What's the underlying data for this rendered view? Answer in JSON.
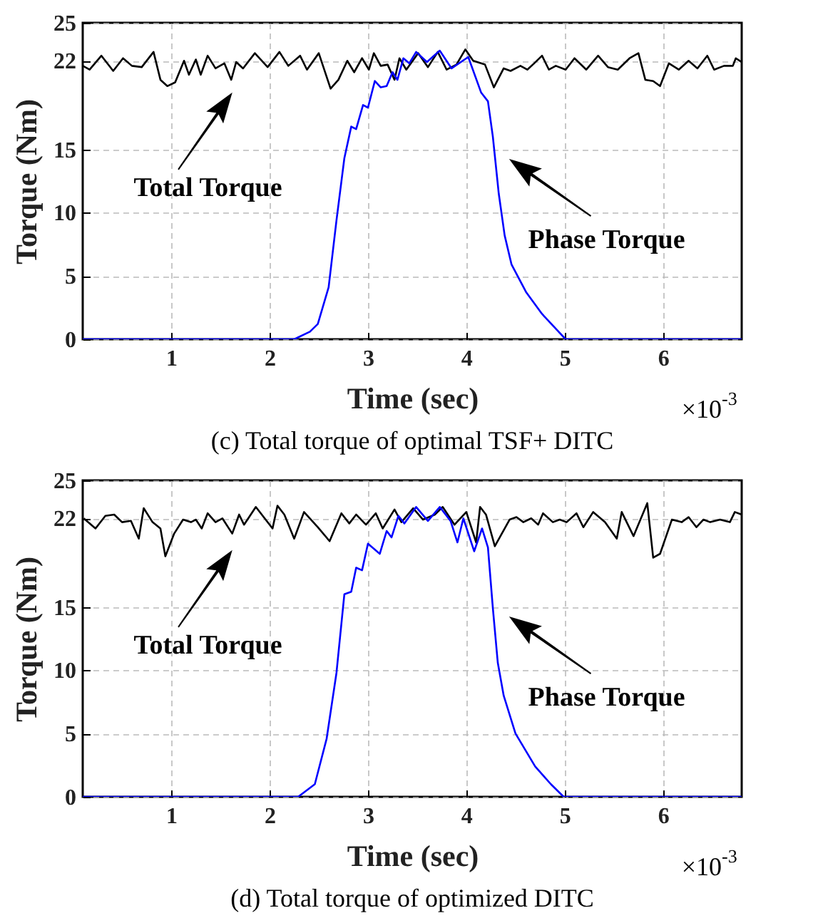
{
  "chart_data": [
    {
      "type": "line",
      "xlabel": "Time (sec)",
      "ylabel": "Torque (Nm)",
      "xlim": [
        0.1,
        6.8
      ],
      "xticks": [
        1,
        2,
        3,
        4,
        5,
        6
      ],
      "ylim": [
        0,
        25
      ],
      "yticks": [
        0,
        5,
        10,
        15,
        22,
        25
      ],
      "grid": true,
      "annotations": [
        "Total Torque",
        "Phase Torque",
        "×10$^{-3}$",
        "(c) Total torque of optimal TSF+ DITC"
      ],
      "series": [
        {
          "color": "#000000",
          "x": [
            0.1,
            0.17,
            0.29,
            0.41,
            0.51,
            0.6,
            0.7,
            0.82,
            0.89,
            0.96,
            1.04,
            1.13,
            1.18,
            1.25,
            1.3,
            1.37,
            1.45,
            1.54,
            1.61,
            1.66,
            1.73,
            1.85,
            1.98,
            2.1,
            2.19,
            2.31,
            2.38,
            2.5,
            2.62,
            2.7,
            2.79,
            2.86,
            2.94,
            3.01,
            3.06,
            3.13,
            3.2,
            3.27,
            3.32,
            3.39,
            3.51,
            3.61,
            3.71,
            3.8,
            3.9,
            3.99,
            4.07,
            4.19,
            4.28,
            4.38,
            4.45,
            4.55,
            4.62,
            4.69,
            4.77,
            4.84,
            4.91,
            5.01,
            5.1,
            5.22,
            5.34,
            5.44,
            5.54,
            5.66,
            5.75,
            5.82,
            5.9,
            5.97,
            6.06,
            6.16,
            6.26,
            6.35,
            6.45,
            6.52,
            6.62,
            6.71,
            6.74,
            6.8
          ],
          "values": [
            21.6,
            21.3,
            22.4,
            21.2,
            22.2,
            21.6,
            21.5,
            22.7,
            20.5,
            20,
            20.3,
            22,
            20.9,
            22.1,
            20.9,
            22.4,
            21.4,
            21.8,
            20.5,
            21.9,
            21.4,
            22.6,
            21.5,
            22.7,
            21.6,
            22.4,
            21.3,
            22.6,
            19.8,
            20.5,
            22,
            21.1,
            22.2,
            21.3,
            22.6,
            21.6,
            21.7,
            20.5,
            22.2,
            21.3,
            22.6,
            21.5,
            22.7,
            21.3,
            21.7,
            22.9,
            22,
            21.7,
            19.9,
            21.4,
            21.2,
            21.6,
            21.3,
            21.8,
            22.4,
            21.3,
            21.6,
            21.3,
            22.2,
            21.3,
            22.4,
            21.5,
            21.3,
            22.2,
            22.6,
            20.5,
            20.4,
            20,
            21.8,
            21.3,
            22,
            21.4,
            22.4,
            21.3,
            21.6,
            21.6,
            22.2,
            21.9
          ]
        },
        {
          "color": "#0000ff",
          "x": [
            0.1,
            2.25,
            2.41,
            2.49,
            2.6,
            2.68,
            2.76,
            2.83,
            2.88,
            2.95,
            3,
            3.07,
            3.13,
            3.19,
            3.25,
            3.3,
            3.36,
            3.42,
            3.49,
            3.6,
            3.73,
            3.85,
            4.02,
            4.15,
            4.22,
            4.27,
            4.33,
            4.39,
            4.46,
            4.61,
            4.77,
            5.01,
            6.8
          ],
          "values": [
            0,
            0,
            0.6,
            1.2,
            4.1,
            9.4,
            14.3,
            16.8,
            16.6,
            18.5,
            18.3,
            20.4,
            19.9,
            20,
            21.1,
            20.5,
            22.2,
            21.8,
            22.7,
            21.9,
            22.8,
            21.4,
            22.3,
            19.5,
            18.8,
            16,
            11.5,
            8.2,
            5.9,
            3.7,
            2,
            0,
            0
          ]
        }
      ]
    },
    {
      "type": "line",
      "xlabel": "Time (sec)",
      "ylabel": "Torque (Nm)",
      "xlim": [
        0.1,
        6.8
      ],
      "xticks": [
        1,
        2,
        3,
        4,
        5,
        6
      ],
      "ylim": [
        0,
        25
      ],
      "yticks": [
        0,
        5,
        10,
        15,
        22,
        25
      ],
      "grid": true,
      "annotations": [
        "Total Torque",
        "Phase Torque",
        "×10$^{-3}$",
        "(d) Total torque of optimized DITC"
      ],
      "series": [
        {
          "color": "#000000",
          "x": [
            0.11,
            0.23,
            0.33,
            0.42,
            0.5,
            0.59,
            0.67,
            0.72,
            0.81,
            0.89,
            0.94,
            1.03,
            1.12,
            1.2,
            1.25,
            1.31,
            1.37,
            1.45,
            1.52,
            1.62,
            1.69,
            1.74,
            1.86,
            2.03,
            2.08,
            2.15,
            2.25,
            2.35,
            2.49,
            2.61,
            2.73,
            2.81,
            2.88,
            2.98,
            3.08,
            3.15,
            3.27,
            3.34,
            3.46,
            3.56,
            3.68,
            3.76,
            3.88,
            4,
            4.1,
            4.14,
            4.2,
            4.29,
            4.44,
            4.51,
            4.58,
            4.66,
            4.73,
            4.78,
            4.88,
            4.95,
            5.02,
            5.12,
            5.19,
            5.29,
            5.41,
            5.53,
            5.58,
            5.7,
            5.84,
            5.9,
            5.97,
            6.09,
            6.19,
            6.26,
            6.34,
            6.41,
            6.48,
            6.58,
            6.68,
            6.73,
            6.8
          ],
          "values": [
            22,
            21.2,
            22.2,
            22.3,
            21.7,
            21.8,
            20.4,
            22.8,
            21.7,
            21.2,
            19,
            20.8,
            21.9,
            21.7,
            21.9,
            21.2,
            22.4,
            21.7,
            22,
            20.8,
            22.3,
            21.5,
            22.9,
            21.2,
            23,
            22.3,
            20.4,
            22.5,
            21.3,
            20.2,
            22.4,
            21.6,
            22.3,
            21.5,
            22.4,
            21.2,
            22.7,
            21.7,
            22.8,
            21.9,
            22.3,
            22.9,
            21.5,
            22.5,
            20.1,
            22.9,
            22.3,
            19.8,
            21.9,
            22.1,
            21.7,
            22,
            21.5,
            22.4,
            21.7,
            21.9,
            21.7,
            22.4,
            21.3,
            22.5,
            21.7,
            20.4,
            22.5,
            20.6,
            23.2,
            18.9,
            19.2,
            21.9,
            21.7,
            22.1,
            21.3,
            21.9,
            21.7,
            21.9,
            21.7,
            22.5,
            22.3
          ]
        },
        {
          "color": "#0000ff",
          "x": [
            0.1,
            2.29,
            2.46,
            2.58,
            2.68,
            2.76,
            2.83,
            2.88,
            2.94,
            3,
            3.12,
            3.19,
            3.24,
            3.31,
            3.37,
            3.49,
            3.61,
            3.73,
            3.84,
            3.91,
            3.97,
            4.08,
            4.16,
            4.22,
            4.27,
            4.32,
            4.38,
            4.5,
            4.7,
            4.86,
            4.99,
            6.8
          ],
          "values": [
            0,
            0,
            1,
            4.6,
            9.8,
            16,
            16.2,
            18.1,
            17.9,
            20,
            19.2,
            21,
            20.5,
            22.2,
            21.6,
            22.9,
            21.8,
            22.9,
            21.8,
            20.1,
            22,
            19.4,
            21.2,
            19.7,
            14.9,
            10.6,
            8,
            5,
            2.4,
            1,
            0,
            0
          ]
        }
      ]
    }
  ]
}
